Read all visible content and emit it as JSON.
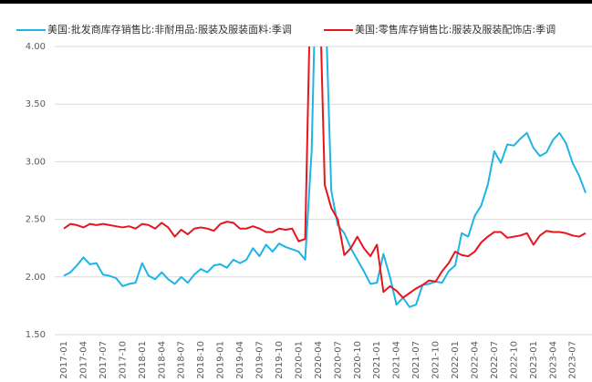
{
  "chart_data": {
    "type": "line",
    "categories": [
      "2017-01",
      null,
      null,
      "2017-04",
      null,
      null,
      "2017-07",
      null,
      null,
      "2017-10",
      null,
      null,
      "2018-01",
      null,
      null,
      "2018-04",
      null,
      null,
      "2018-07",
      null,
      null,
      "2018-10",
      null,
      null,
      "2019-01",
      null,
      null,
      "2019-04",
      null,
      null,
      "2019-07",
      null,
      null,
      "2019-10",
      null,
      null,
      "2020-01",
      null,
      null,
      "2020-04",
      null,
      null,
      "2020-07",
      null,
      null,
      "2020-10",
      null,
      null,
      "2021-01",
      null,
      null,
      "2021-04",
      null,
      null,
      "2021-07",
      null,
      null,
      "2021-10",
      null,
      null,
      "2022-01",
      null,
      null,
      "2022-04",
      null,
      null,
      "2022-07",
      null,
      null,
      "2022-10",
      null,
      null,
      "2023-01",
      null,
      null,
      "2023-04",
      null,
      null,
      "2023-07",
      null,
      null
    ],
    "series": [
      {
        "name": "美国:批发商库存销售比:非耐用品:服装及服装面料:季调",
        "color": "#1eb4e6",
        "values": [
          2.01,
          2.04,
          2.1,
          2.17,
          2.11,
          2.12,
          2.02,
          2.01,
          1.99,
          1.92,
          1.94,
          1.95,
          2.12,
          2.01,
          1.98,
          2.04,
          1.98,
          1.94,
          2.0,
          1.95,
          2.02,
          2.07,
          2.04,
          2.1,
          2.11,
          2.08,
          2.15,
          2.12,
          2.15,
          2.25,
          2.18,
          2.28,
          2.22,
          2.29,
          2.26,
          2.24,
          2.22,
          2.15,
          3.1,
          5.5,
          4.6,
          2.75,
          2.45,
          2.38,
          2.25,
          2.15,
          2.05,
          1.94,
          1.95,
          2.2,
          2.0,
          1.76,
          1.82,
          1.74,
          1.76,
          1.93,
          1.94,
          1.96,
          1.95,
          2.05,
          2.1,
          2.38,
          2.35,
          2.53,
          2.62,
          2.8,
          3.09,
          2.99,
          3.15,
          3.14,
          3.2,
          3.25,
          3.12,
          3.05,
          3.08,
          3.19,
          3.25,
          3.16,
          2.99,
          2.88,
          2.73
        ]
      },
      {
        "name": "美国:零售库存销售比:服装及服装配饰店:季调",
        "color": "#e8141e",
        "values": [
          2.42,
          2.46,
          2.45,
          2.43,
          2.46,
          2.45,
          2.46,
          2.45,
          2.44,
          2.43,
          2.44,
          2.42,
          2.46,
          2.45,
          2.42,
          2.47,
          2.43,
          2.35,
          2.41,
          2.37,
          2.42,
          2.43,
          2.42,
          2.4,
          2.46,
          2.48,
          2.47,
          2.42,
          2.42,
          2.44,
          2.42,
          2.39,
          2.39,
          2.42,
          2.41,
          2.42,
          2.31,
          2.33,
          5.0,
          5.0,
          2.8,
          2.6,
          2.5,
          2.19,
          2.25,
          2.35,
          2.25,
          2.18,
          2.28,
          1.87,
          1.92,
          1.88,
          1.82,
          1.86,
          1.9,
          1.93,
          1.97,
          1.96,
          2.05,
          2.12,
          2.22,
          2.19,
          2.18,
          2.22,
          2.3,
          2.35,
          2.39,
          2.39,
          2.34,
          2.35,
          2.36,
          2.38,
          2.28,
          2.36,
          2.4,
          2.39,
          2.39,
          2.38,
          2.36,
          2.35,
          2.38
        ]
      }
    ],
    "ylim": [
      1.5,
      4.0
    ],
    "yticks": [
      {
        "value": 1.5,
        "label": "1.50"
      },
      {
        "value": 2.0,
        "label": "2.00"
      },
      {
        "value": 2.5,
        "label": "2.50"
      },
      {
        "value": 3.0,
        "label": "3.00"
      },
      {
        "value": 3.5,
        "label": "3.50"
      },
      {
        "value": 4.0,
        "label": "4.00"
      }
    ],
    "grid": true
  }
}
